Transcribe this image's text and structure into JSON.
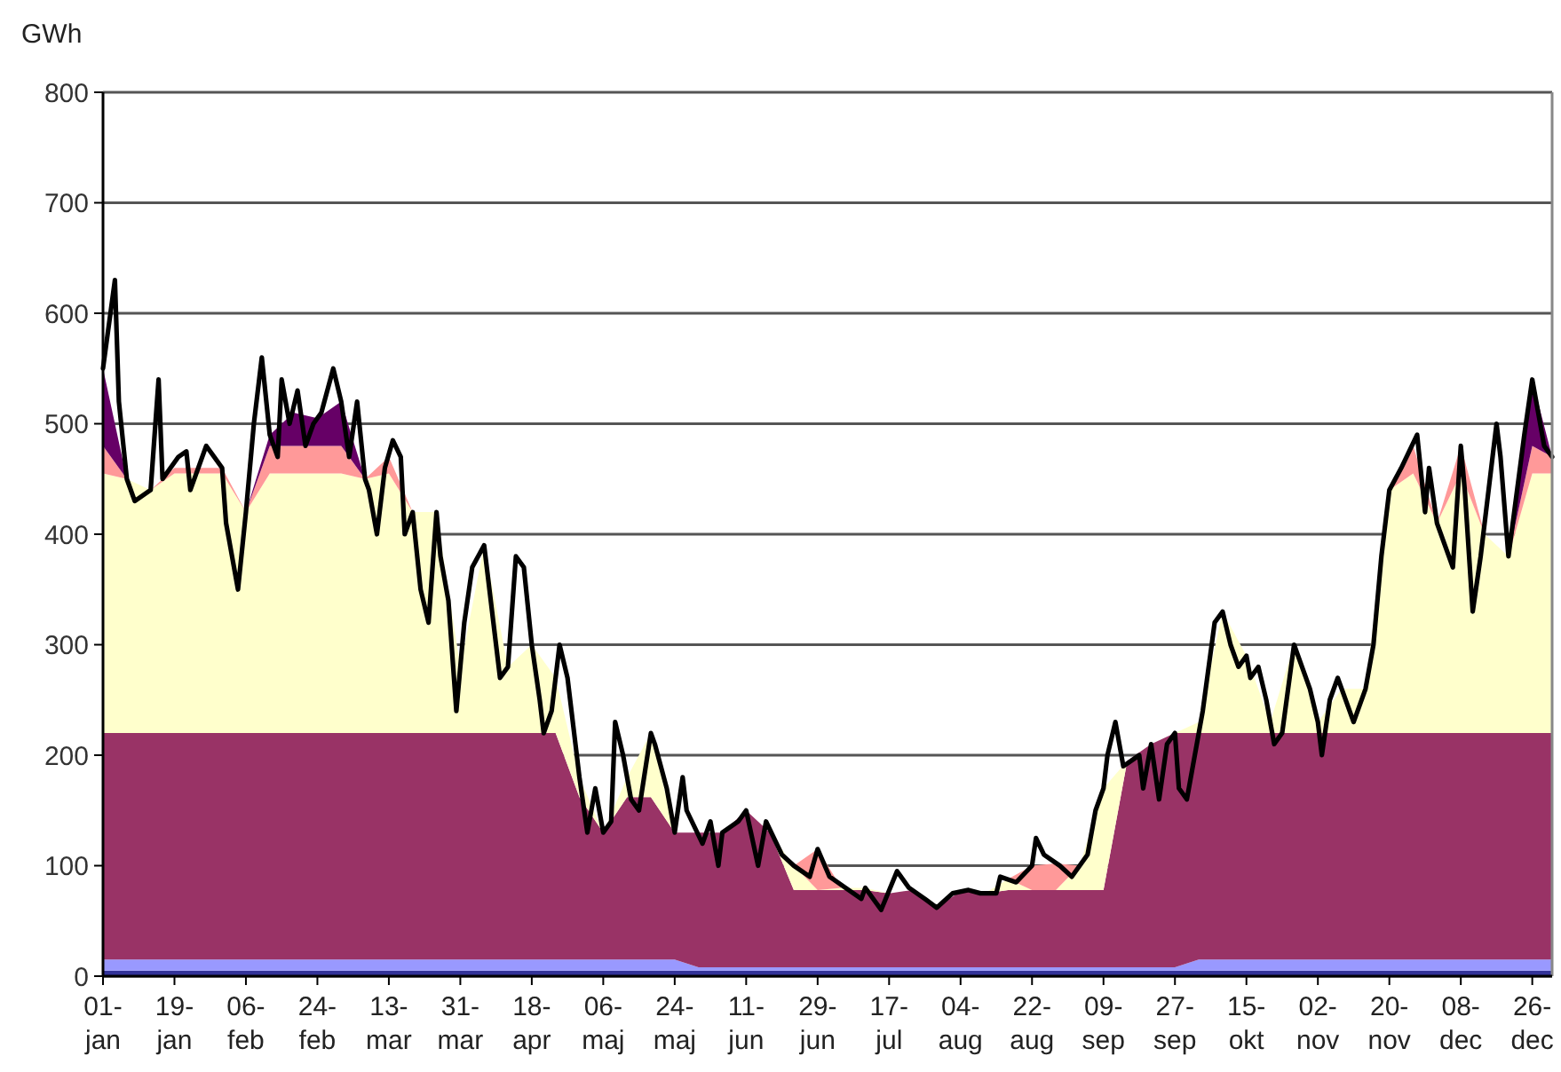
{
  "chart_data": {
    "type": "area",
    "stacked": true,
    "ylabel": "GWh",
    "grid": "y",
    "x": [
      "--01-01",
      "--01-07",
      "--01-13",
      "--01-19",
      "--01-25",
      "--01-31",
      "--02-06",
      "--02-12",
      "--02-18",
      "--02-24",
      "--03-01",
      "--03-07",
      "--03-13",
      "--03-19",
      "--03-25",
      "--03-31",
      "--04-06",
      "--04-12",
      "--04-18",
      "--04-24",
      "--04-30",
      "--05-06",
      "--05-12",
      "--05-18",
      "--05-24",
      "--05-30",
      "--06-05",
      "--06-11",
      "--06-17",
      "--06-23",
      "--06-29",
      "--07-05",
      "--07-11",
      "--07-17",
      "--07-23",
      "--07-29",
      "--08-04",
      "--08-10",
      "--08-16",
      "--08-22",
      "--08-28",
      "--09-03",
      "--09-09",
      "--09-15",
      "--09-21",
      "--09-27",
      "--10-03",
      "--10-09",
      "--10-15",
      "--10-21",
      "--10-27",
      "--11-02",
      "--11-08",
      "--11-14",
      "--11-20",
      "--11-26",
      "--12-02",
      "--12-08",
      "--12-14",
      "--12-20",
      "--12-26",
      "--12-31"
    ],
    "xlim": [
      "--01-01",
      "--12-31"
    ],
    "xticks": [
      {
        "value": "--01-01",
        "label": "01- jan"
      },
      {
        "value": "--01-19",
        "label": "19- jan"
      },
      {
        "value": "--02-06",
        "label": "06- feb"
      },
      {
        "value": "--02-24",
        "label": "24- feb"
      },
      {
        "value": "--03-13",
        "label": "13- mar"
      },
      {
        "value": "--03-31",
        "label": "31- mar"
      },
      {
        "value": "--04-18",
        "label": "18- apr"
      },
      {
        "value": "--05-06",
        "label": "06- maj"
      },
      {
        "value": "--05-24",
        "label": "24- maj"
      },
      {
        "value": "--06-11",
        "label": "11- jun"
      },
      {
        "value": "--06-29",
        "label": "29- jun"
      },
      {
        "value": "--07-17",
        "label": "17- jul"
      },
      {
        "value": "--08-04",
        "label": "04- aug"
      },
      {
        "value": "--08-22",
        "label": "22- aug"
      },
      {
        "value": "--09-09",
        "label": "09- sep"
      },
      {
        "value": "--09-27",
        "label": "27- sep"
      },
      {
        "value": "--10-15",
        "label": "15- okt"
      },
      {
        "value": "--11-02",
        "label": "02- nov"
      },
      {
        "value": "--11-20",
        "label": "20- nov"
      },
      {
        "value": "--12-08",
        "label": "08- dec"
      },
      {
        "value": "--12-26",
        "label": "26- dec"
      }
    ],
    "ylim": [
      0,
      800
    ],
    "yticks": [
      0,
      100,
      200,
      300,
      400,
      500,
      600,
      700,
      800
    ],
    "series": [
      {
        "color": "#333399",
        "values": [
          5,
          5,
          5,
          5,
          5,
          5,
          5,
          5,
          5,
          5,
          5,
          5,
          5,
          5,
          5,
          5,
          5,
          5,
          5,
          5,
          5,
          5,
          5,
          5,
          5,
          5,
          5,
          5,
          5,
          5,
          5,
          5,
          5,
          5,
          5,
          5,
          5,
          5,
          5,
          5,
          5,
          5,
          5,
          5,
          5,
          5,
          5,
          5,
          5,
          5,
          5,
          5,
          5,
          5,
          5,
          5,
          5,
          5,
          5,
          5,
          5,
          5
        ]
      },
      {
        "color": "#9999ff",
        "values": [
          10,
          10,
          10,
          10,
          10,
          10,
          10,
          10,
          10,
          10,
          10,
          10,
          10,
          10,
          10,
          10,
          10,
          10,
          10,
          10,
          10,
          10,
          10,
          10,
          10,
          3,
          3,
          3,
          3,
          3,
          3,
          3,
          3,
          3,
          3,
          3,
          3,
          3,
          3,
          3,
          3,
          3,
          3,
          3,
          3,
          3,
          10,
          10,
          10,
          10,
          10,
          10,
          10,
          10,
          10,
          10,
          10,
          10,
          10,
          10,
          10,
          10
        ]
      },
      {
        "color": "#993366",
        "values": [
          205,
          205,
          205,
          205,
          205,
          205,
          205,
          205,
          205,
          205,
          205,
          205,
          205,
          205,
          205,
          205,
          205,
          205,
          205,
          205,
          147,
          115,
          147,
          147,
          115,
          122,
          122,
          142,
          122,
          70,
          70,
          70,
          70,
          67,
          70,
          54,
          69,
          67,
          70,
          70,
          70,
          70,
          70,
          187,
          202,
          212,
          205,
          205,
          205,
          205,
          205,
          205,
          205,
          205,
          205,
          205,
          205,
          205,
          205,
          205,
          205,
          205
        ]
      },
      {
        "color": "#ffffcc",
        "values": [
          235,
          230,
          220,
          235,
          235,
          235,
          200,
          235,
          235,
          235,
          235,
          230,
          235,
          200,
          200,
          60,
          170,
          60,
          80,
          50,
          18,
          0,
          18,
          58,
          0,
          0,
          0,
          0,
          0,
          22,
          0,
          2,
          2,
          0,
          0,
          0,
          0,
          0,
          10,
          0,
          0,
          22,
          92,
          0,
          0,
          0,
          10,
          110,
          70,
          10,
          80,
          10,
          40,
          40,
          220,
          235,
          190,
          235,
          180,
          160,
          235,
          235
        ]
      },
      {
        "color": "#ff9999",
        "values": [
          25,
          0,
          0,
          5,
          5,
          5,
          0,
          25,
          25,
          25,
          25,
          0,
          15,
          0,
          0,
          0,
          0,
          0,
          0,
          0,
          0,
          0,
          0,
          0,
          0,
          0,
          0,
          0,
          0,
          0,
          37,
          0,
          0,
          0,
          0,
          0,
          0,
          0,
          0,
          22,
          24,
          0,
          0,
          0,
          0,
          0,
          0,
          0,
          0,
          0,
          0,
          0,
          0,
          0,
          0,
          25,
          0,
          25,
          0,
          0,
          25,
          15
        ]
      },
      {
        "color": "#660066",
        "values": [
          70,
          0,
          0,
          0,
          0,
          0,
          0,
          10,
          30,
          25,
          40,
          0,
          0,
          0,
          0,
          0,
          0,
          0,
          0,
          0,
          0,
          0,
          0,
          0,
          0,
          0,
          0,
          0,
          0,
          0,
          0,
          0,
          0,
          0,
          0,
          0,
          0,
          0,
          0,
          0,
          0,
          0,
          0,
          0,
          0,
          0,
          0,
          0,
          0,
          0,
          0,
          0,
          0,
          0,
          0,
          0,
          0,
          0,
          0,
          0,
          60,
          0
        ]
      },
      {
        "type": "line",
        "color": "#000000",
        "x": [
          "--01-01",
          "--01-04",
          "--01-05",
          "--01-07",
          "--01-09",
          "--01-13",
          "--01-15",
          "--01-16",
          "--01-20",
          "--01-22",
          "--01-23",
          "--01-27",
          "--01-31",
          "--02-01",
          "--02-04",
          "--02-06",
          "--02-08",
          "--02-10",
          "--02-12",
          "--02-14",
          "--02-15",
          "--02-17",
          "--02-19",
          "--02-21",
          "--02-23",
          "--02-25",
          "--02-28",
          "--03-01",
          "--03-03",
          "--03-05",
          "--03-07",
          "--03-08",
          "--03-10",
          "--03-12",
          "--03-14",
          "--03-16",
          "--03-17",
          "--03-19",
          "--03-21",
          "--03-23",
          "--03-25",
          "--03-26",
          "--03-28",
          "--03-30",
          "--04-01",
          "--04-03",
          "--04-06",
          "--04-08",
          "--04-10",
          "--04-12",
          "--04-14",
          "--04-16",
          "--04-18",
          "--04-20",
          "--04-21",
          "--04-23",
          "--04-25",
          "--04-27",
          "--04-29",
          "--04-30",
          "--05-02",
          "--05-04",
          "--05-06",
          "--05-08",
          "--05-09",
          "--05-11",
          "--05-13",
          "--05-15",
          "--05-18",
          "--05-19",
          "--05-22",
          "--05-24",
          "--05-26",
          "--05-27",
          "--05-31",
          "--06-02",
          "--06-04",
          "--06-05",
          "--06-09",
          "--06-11",
          "--06-14",
          "--06-16",
          "--06-20",
          "--06-23",
          "--06-27",
          "--06-29",
          "--07-02",
          "--07-06",
          "--07-10",
          "--07-11",
          "--07-15",
          "--07-19",
          "--07-22",
          "--07-26",
          "--07-29",
          "--08-02",
          "--08-06",
          "--08-09",
          "--08-13",
          "--08-14",
          "--08-18",
          "--08-22",
          "--08-23",
          "--08-25",
          "--08-29",
          "--09-01",
          "--09-03",
          "--09-05",
          "--09-07",
          "--09-09",
          "--09-10",
          "--09-12",
          "--09-14",
          "--09-18",
          "--09-19",
          "--09-21",
          "--09-23",
          "--09-25",
          "--09-27",
          "--09-28",
          "--09-30",
          "--10-04",
          "--10-07",
          "--10-09",
          "--10-11",
          "--10-13",
          "--10-15",
          "--10-16",
          "--10-18",
          "--10-20",
          "--10-22",
          "--10-24",
          "--10-27",
          "--10-31",
          "--11-02",
          "--11-03",
          "--11-05",
          "--11-07",
          "--11-11",
          "--11-14",
          "--11-16",
          "--11-18",
          "--11-20",
          "--11-23",
          "--11-27",
          "--11-29",
          "--11-30",
          "--12-02",
          "--12-06",
          "--12-08",
          "--12-09",
          "--12-11",
          "--12-13",
          "--12-17",
          "--12-18",
          "--12-20",
          "--12-24",
          "--12-26",
          "--12-29",
          "--12-31"
        ],
        "values": [
          550,
          630,
          520,
          450,
          430,
          440,
          540,
          450,
          470,
          475,
          440,
          480,
          460,
          410,
          350,
          420,
          500,
          560,
          490,
          470,
          540,
          500,
          530,
          480,
          500,
          510,
          550,
          520,
          470,
          520,
          450,
          440,
          400,
          460,
          485,
          470,
          400,
          420,
          350,
          320,
          420,
          380,
          340,
          240,
          320,
          370,
          390,
          330,
          270,
          280,
          380,
          370,
          300,
          250,
          220,
          240,
          300,
          270,
          210,
          180,
          130,
          170,
          130,
          140,
          230,
          200,
          160,
          150,
          220,
          210,
          170,
          130,
          180,
          150,
          120,
          140,
          100,
          130,
          140,
          150,
          100,
          140,
          110,
          100,
          90,
          115,
          90,
          80,
          70,
          80,
          60,
          95,
          80,
          70,
          62,
          75,
          78,
          75,
          75,
          90,
          85,
          100,
          125,
          110,
          100,
          90,
          100,
          110,
          150,
          170,
          200,
          230,
          190,
          200,
          170,
          210,
          160,
          210,
          220,
          170,
          160,
          240,
          320,
          330,
          300,
          280,
          290,
          270,
          280,
          250,
          210,
          220,
          300,
          260,
          230,
          200,
          250,
          270,
          230,
          260,
          300,
          380,
          440,
          460,
          490,
          420,
          460,
          410,
          370,
          480,
          440,
          330,
          380,
          500,
          470,
          380,
          490,
          540,
          480,
          470
        ]
      }
    ]
  }
}
